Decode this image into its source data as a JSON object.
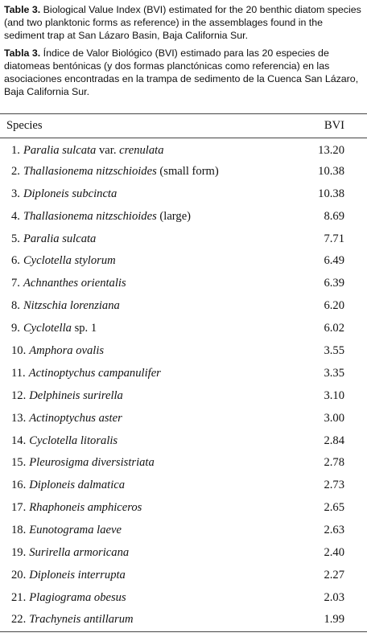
{
  "caption_en": {
    "label": "Table 3.",
    "text": "Biological Value Index (BVI) estimated for the 20 benthic diatom species (and two planktonic forms as reference) in the assemblages found in the sediment trap at San Lázaro Basin, Baja California Sur."
  },
  "caption_es": {
    "label": "Tabla 3.",
    "text": "Índice de Valor Biológico (BVI) estimado para las 20 especies de diatomeas bentónicas (y dos formas planctónicas como referencia) en las asociaciones encontradas en la trampa de sedimento de la Cuenca San Lázaro, Baja California Sur."
  },
  "table": {
    "headers": [
      "Species",
      "BVI"
    ],
    "rows": [
      {
        "num": "1.",
        "species": [
          {
            "text": "Paralia sulcata",
            "italic": true
          },
          {
            "text": "var.",
            "italic": false
          },
          {
            "text": "crenulata",
            "italic": true
          }
        ],
        "bvi": "13.20"
      },
      {
        "num": "2.",
        "species": [
          {
            "text": "Thallasionema nitzschioides",
            "italic": true
          },
          {
            "text": "(small form)",
            "italic": false
          }
        ],
        "bvi": "10.38"
      },
      {
        "num": "3.",
        "species": [
          {
            "text": "Diploneis subcincta",
            "italic": true
          }
        ],
        "bvi": "10.38"
      },
      {
        "num": "4.",
        "species": [
          {
            "text": "Thallasionema nitzschioides",
            "italic": true
          },
          {
            "text": "(large)",
            "italic": false
          }
        ],
        "bvi": "8.69"
      },
      {
        "num": "5.",
        "species": [
          {
            "text": "Paralia sulcata",
            "italic": true
          }
        ],
        "bvi": "7.71"
      },
      {
        "num": "6.",
        "species": [
          {
            "text": "Cyclotella stylorum",
            "italic": true
          }
        ],
        "bvi": "6.49"
      },
      {
        "num": "7.",
        "species": [
          {
            "text": "Achnanthes orientalis",
            "italic": true
          }
        ],
        "bvi": "6.39"
      },
      {
        "num": "8.",
        "species": [
          {
            "text": "Nitzschia lorenziana",
            "italic": true
          }
        ],
        "bvi": "6.20"
      },
      {
        "num": "9.",
        "species": [
          {
            "text": "Cyclotella",
            "italic": true
          },
          {
            "text": "sp. 1",
            "italic": false
          }
        ],
        "bvi": "6.02"
      },
      {
        "num": "10.",
        "species": [
          {
            "text": "Amphora ovalis",
            "italic": true
          }
        ],
        "bvi": "3.55"
      },
      {
        "num": "11.",
        "species": [
          {
            "text": "Actinoptychus campanulifer",
            "italic": true
          }
        ],
        "bvi": "3.35"
      },
      {
        "num": "12.",
        "species": [
          {
            "text": "Delphineis surirella",
            "italic": true
          }
        ],
        "bvi": "3.10"
      },
      {
        "num": "13.",
        "species": [
          {
            "text": "Actinoptychus aster",
            "italic": true
          }
        ],
        "bvi": "3.00"
      },
      {
        "num": "14.",
        "species": [
          {
            "text": "Cyclotella litoralis",
            "italic": true
          }
        ],
        "bvi": "2.84"
      },
      {
        "num": "15.",
        "species": [
          {
            "text": "Pleurosigma diversistriata",
            "italic": true
          }
        ],
        "bvi": "2.78"
      },
      {
        "num": "16.",
        "species": [
          {
            "text": "Diploneis dalmatica",
            "italic": true
          }
        ],
        "bvi": "2.73"
      },
      {
        "num": "17.",
        "species": [
          {
            "text": "Rhaphoneis amphiceros",
            "italic": true
          }
        ],
        "bvi": "2.65"
      },
      {
        "num": "18.",
        "species": [
          {
            "text": "Eunotograma laeve",
            "italic": true
          }
        ],
        "bvi": "2.63"
      },
      {
        "num": "19.",
        "species": [
          {
            "text": "Surirella armoricana",
            "italic": true
          }
        ],
        "bvi": "2.40"
      },
      {
        "num": "20.",
        "species": [
          {
            "text": "Diploneis interrupta",
            "italic": true
          }
        ],
        "bvi": "2.27"
      },
      {
        "num": "21.",
        "species": [
          {
            "text": "Plagiograma obesus",
            "italic": true
          }
        ],
        "bvi": "2.03"
      },
      {
        "num": "22.",
        "species": [
          {
            "text": "Trachyneis antillarum",
            "italic": true
          }
        ],
        "bvi": "1.99"
      }
    ]
  }
}
